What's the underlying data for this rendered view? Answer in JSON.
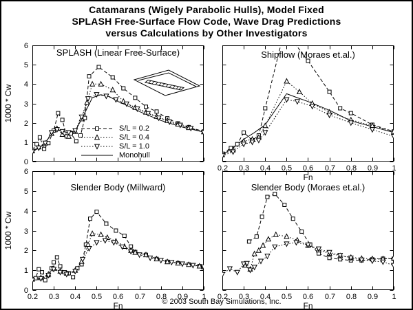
{
  "figure": {
    "title_lines": [
      "Catamarans (Wigely Parabolic Hulls), Model Fixed",
      "SPLASH Free-Surface Flow Code, Wave Drag Predictions",
      "versus Calculations by Other Investigators"
    ],
    "footer": "© 2003 South Bay Simulations, Inc."
  },
  "colors": {
    "ink": "#000000",
    "paper": "#ffffff"
  },
  "legend": {
    "items": [
      {
        "label": "S/L = 0.2",
        "line": "dashed",
        "marker": "square"
      },
      {
        "label": "S/L = 0.4",
        "line": "dotted",
        "marker": "triangle-up"
      },
      {
        "label": "S/L = 1.0",
        "line": "dotted",
        "marker": "triangle-down"
      },
      {
        "label": "Monohull",
        "line": "solid",
        "marker": "none"
      }
    ]
  },
  "chart_data": [
    {
      "id": "splash",
      "type": "line",
      "title": "SPLASH (Linear Free-Surface)",
      "xlabel": "",
      "ylabel": "1000 * Cw",
      "xlim": [
        0.2,
        1.0
      ],
      "ylim": [
        0,
        6
      ],
      "grid": false,
      "x_ticks": [
        0.2,
        0.3,
        0.4,
        0.5,
        0.6,
        0.7,
        0.8,
        0.9,
        1.0
      ],
      "x_tick_labels": [
        "0.2",
        "0.3",
        "0.4",
        "0.5",
        "0.6",
        "0.7",
        "0.8",
        "0.9",
        "1"
      ],
      "show_x_tick_labels": false,
      "y_ticks": [
        0,
        1,
        2,
        3,
        4,
        5,
        6
      ],
      "y_tick_labels": [
        "0",
        "1",
        "2",
        "3",
        "4",
        "5",
        "6"
      ],
      "show_y_tick_labels": true,
      "series": [
        {
          "name": "S/L = 0.2",
          "line": "dashed",
          "marker": "square",
          "x": [
            0.2,
            0.22,
            0.235,
            0.255,
            0.275,
            0.3,
            0.32,
            0.34,
            0.36,
            0.38,
            0.405,
            0.425,
            0.445,
            0.465,
            0.51,
            0.575,
            0.625,
            0.68,
            0.73,
            0.78,
            0.83,
            0.88,
            0.93,
            1.0
          ],
          "y": [
            0.6,
            0.9,
            1.25,
            0.65,
            0.95,
            1.6,
            2.5,
            2.15,
            1.3,
            1.45,
            1.05,
            1.35,
            2.25,
            4.4,
            4.88,
            4.35,
            3.78,
            3.29,
            2.83,
            2.58,
            2.23,
            1.97,
            1.78,
            1.55
          ]
        },
        {
          "name": "S/L = 0.4",
          "line": "dotted",
          "marker": "triangle-up",
          "x": [
            0.2,
            0.23,
            0.26,
            0.29,
            0.315,
            0.34,
            0.37,
            0.4,
            0.43,
            0.455,
            0.48,
            0.52,
            0.575,
            0.625,
            0.68,
            0.73,
            0.78,
            0.83,
            0.88,
            0.93,
            1.0
          ],
          "y": [
            0.55,
            0.75,
            0.95,
            1.45,
            1.7,
            1.4,
            1.3,
            1.55,
            2.2,
            3.05,
            4.0,
            4.0,
            3.7,
            3.11,
            2.79,
            2.55,
            2.33,
            2.12,
            1.93,
            1.75,
            1.53
          ]
        },
        {
          "name": "S/L = 1.0",
          "line": "dotted",
          "marker": "triangle-down",
          "x": [
            0.2,
            0.23,
            0.26,
            0.29,
            0.315,
            0.34,
            0.37,
            0.4,
            0.43,
            0.46,
            0.5,
            0.545,
            0.59,
            0.64,
            0.69,
            0.74,
            0.79,
            0.84,
            0.89,
            0.94,
            1.0
          ],
          "y": [
            0.5,
            0.7,
            0.95,
            1.5,
            1.65,
            1.55,
            1.5,
            1.6,
            2.3,
            3.25,
            3.46,
            3.38,
            3.2,
            2.98,
            2.72,
            2.48,
            2.25,
            2.05,
            1.88,
            1.72,
            1.5
          ]
        },
        {
          "name": "Monohull",
          "line": "solid",
          "marker": "none",
          "x": [
            0.2,
            0.25,
            0.3,
            0.33,
            0.36,
            0.4,
            0.44,
            0.48,
            0.52,
            0.56,
            0.6,
            0.65,
            0.7,
            0.75,
            0.8,
            0.85,
            0.9,
            0.95,
            1.0
          ],
          "y": [
            0.5,
            0.85,
            1.55,
            1.62,
            1.5,
            1.58,
            2.4,
            3.3,
            3.45,
            3.35,
            3.1,
            2.85,
            2.58,
            2.35,
            2.12,
            1.95,
            1.78,
            1.65,
            1.52
          ]
        }
      ]
    },
    {
      "id": "shipflow",
      "type": "line",
      "title": "Shipflow (Moraes et.al.)",
      "xlabel": "Fn",
      "ylabel": "",
      "xlim": [
        0.2,
        1.0
      ],
      "ylim": [
        0,
        6
      ],
      "grid": false,
      "x_ticks": [
        0.2,
        0.3,
        0.4,
        0.5,
        0.6,
        0.7,
        0.8,
        0.9,
        1.0
      ],
      "x_tick_labels": [
        "0.2",
        "0.3",
        "0.4",
        "0.5",
        "0.6",
        "0.7",
        "0.8",
        "0.9",
        "1"
      ],
      "show_x_tick_labels": true,
      "y_ticks": [
        0,
        1,
        2,
        3,
        4,
        5,
        6
      ],
      "y_tick_labels": [
        "0",
        "1",
        "2",
        "3",
        "4",
        "5",
        "6"
      ],
      "show_y_tick_labels": false,
      "series": [
        {
          "name": "S/L = 0.2",
          "line": "dashed",
          "marker": "square",
          "x": [
            0.2,
            0.24,
            0.27,
            0.3,
            0.34,
            0.37,
            0.4,
            0.49,
            0.6,
            0.7,
            0.75,
            0.8,
            0.9,
            1.0
          ],
          "y": [
            0.4,
            0.7,
            0.9,
            1.5,
            1.1,
            1.35,
            2.75,
            6.8,
            5.2,
            3.6,
            2.75,
            2.5,
            1.9,
            1.55
          ]
        },
        {
          "name": "S/L = 0.4",
          "line": "dotted",
          "marker": "triangle-up",
          "x": [
            0.2,
            0.25,
            0.3,
            0.34,
            0.37,
            0.4,
            0.5,
            0.56,
            0.62,
            0.7,
            0.8,
            0.9,
            1.0
          ],
          "y": [
            0.35,
            0.6,
            1.05,
            1.15,
            1.25,
            1.85,
            4.15,
            3.6,
            3.0,
            2.55,
            2.15,
            1.85,
            1.55
          ]
        },
        {
          "name": "S/L = 1.0",
          "line": "dotted",
          "marker": "triangle-down",
          "x": [
            0.2,
            0.25,
            0.3,
            0.34,
            0.37,
            0.4,
            0.5,
            0.55,
            0.62,
            0.7,
            0.8,
            0.9,
            1.0
          ],
          "y": [
            0.3,
            0.5,
            0.9,
            1.0,
            1.1,
            1.5,
            3.2,
            3.1,
            2.85,
            2.4,
            2.0,
            1.65,
            1.3
          ]
        },
        {
          "name": "Monohull",
          "line": "solid",
          "marker": "none",
          "x": [
            0.2,
            0.25,
            0.3,
            0.35,
            0.4,
            0.45,
            0.5,
            0.55,
            0.6,
            0.7,
            0.8,
            0.9,
            1.0
          ],
          "y": [
            0.35,
            0.7,
            1.15,
            1.5,
            1.9,
            2.7,
            3.5,
            3.3,
            3.1,
            2.65,
            2.1,
            1.8,
            1.5
          ]
        }
      ]
    },
    {
      "id": "slender-body-millward",
      "type": "line",
      "title": "Slender Body (Millward)",
      "xlabel": "Fn",
      "ylabel": "1000 * Cw",
      "xlim": [
        0.2,
        1.0
      ],
      "ylim": [
        0,
        6
      ],
      "grid": false,
      "x_ticks": [
        0.2,
        0.3,
        0.4,
        0.5,
        0.6,
        0.7,
        0.8,
        0.9,
        1.0
      ],
      "x_tick_labels": [
        "0.2",
        "0.3",
        "0.4",
        "0.5",
        "0.6",
        "0.7",
        "0.8",
        "0.9",
        "1"
      ],
      "show_x_tick_labels": true,
      "y_ticks": [
        0,
        1,
        2,
        3,
        4,
        5,
        6
      ],
      "y_tick_labels": [
        "0",
        "1",
        "2",
        "3",
        "4",
        "5",
        "6"
      ],
      "show_y_tick_labels": true,
      "series": [
        {
          "name": "S/L = 0.2",
          "line": "dashed",
          "marker": "square",
          "x": [
            0.2,
            0.215,
            0.23,
            0.245,
            0.26,
            0.275,
            0.29,
            0.3,
            0.315,
            0.33,
            0.35,
            0.37,
            0.39,
            0.41,
            0.43,
            0.45,
            0.47,
            0.5,
            0.545,
            0.59,
            0.63,
            0.66,
            0.68,
            0.73,
            0.78,
            0.83,
            0.88,
            0.93,
            0.98,
            1.0
          ],
          "y": [
            0.55,
            0.6,
            1.05,
            0.9,
            0.5,
            0.75,
            1.1,
            1.4,
            1.65,
            1.2,
            0.9,
            0.85,
            0.65,
            1.1,
            1.3,
            2.3,
            3.6,
            3.95,
            3.35,
            3.0,
            2.74,
            2.2,
            1.92,
            1.78,
            1.57,
            1.43,
            1.36,
            1.29,
            1.21,
            1.15
          ]
        },
        {
          "name": "S/L = 0.4",
          "line": "dotted",
          "marker": "triangle-up",
          "x": [
            0.2,
            0.24,
            0.275,
            0.3,
            0.33,
            0.36,
            0.4,
            0.43,
            0.46,
            0.48,
            0.52,
            0.55,
            0.59,
            0.63,
            0.66,
            0.68,
            0.73,
            0.78,
            0.83,
            0.88,
            0.93,
            0.98,
            1.0
          ],
          "y": [
            0.55,
            0.62,
            0.8,
            1.1,
            0.95,
            0.85,
            1.0,
            1.45,
            2.3,
            2.85,
            2.8,
            2.65,
            2.47,
            2.2,
            2.0,
            1.9,
            1.78,
            1.57,
            1.43,
            1.36,
            1.29,
            1.21,
            1.18
          ]
        },
        {
          "name": "S/L = 1.0",
          "line": "dotted",
          "marker": "triangle-down",
          "x": [
            0.2,
            0.24,
            0.275,
            0.3,
            0.33,
            0.36,
            0.4,
            0.435,
            0.465,
            0.5,
            0.54,
            0.58,
            0.62,
            0.66,
            0.7,
            0.75,
            0.8,
            0.85,
            0.9,
            0.95,
            1.0
          ],
          "y": [
            0.5,
            0.58,
            0.75,
            1.05,
            0.9,
            0.8,
            0.95,
            1.55,
            2.1,
            2.4,
            2.5,
            2.4,
            2.18,
            1.95,
            1.78,
            1.62,
            1.5,
            1.4,
            1.32,
            1.25,
            1.17
          ]
        }
      ]
    },
    {
      "id": "slender-body-moraes",
      "type": "line",
      "title": "Slender Body (Moraes et.al.)",
      "xlabel": "Fn",
      "ylabel": "",
      "xlim": [
        0.2,
        1.0
      ],
      "ylim": [
        0,
        6
      ],
      "grid": false,
      "x_ticks": [
        0.2,
        0.3,
        0.4,
        0.5,
        0.6,
        0.7,
        0.8,
        0.9,
        1.0
      ],
      "x_tick_labels": [
        "0.2",
        "0.3",
        "0.4",
        "0.5",
        "0.6",
        "0.7",
        "0.8",
        "0.9",
        "1"
      ],
      "show_x_tick_labels": true,
      "y_ticks": [
        0,
        1,
        2,
        3,
        4,
        5,
        6
      ],
      "y_tick_labels": [
        "0",
        "1",
        "2",
        "3",
        "4",
        "5",
        "6"
      ],
      "show_y_tick_labels": false,
      "series": [
        {
          "name": "S/L = 0.2",
          "line": "dashed",
          "marker": "square",
          "x": [
            0.325,
            0.36,
            0.385,
            0.41,
            0.445,
            0.49,
            0.53,
            0.57,
            0.61,
            0.65,
            0.7,
            0.75,
            0.8,
            0.85,
            0.9,
            0.95,
            1.0
          ],
          "y": [
            2.45,
            2.7,
            3.7,
            4.7,
            4.85,
            4.3,
            3.6,
            2.95,
            2.3,
            1.85,
            1.62,
            1.55,
            1.5,
            1.5,
            1.55,
            1.58,
            1.58
          ]
        },
        {
          "name": "S/L = 0.4",
          "line": "dotted",
          "marker": "triangle-up",
          "x": [
            0.305,
            0.33,
            0.35,
            0.37,
            0.39,
            0.415,
            0.45,
            0.5,
            0.55,
            0.6,
            0.65,
            0.7,
            0.75,
            0.8,
            0.85,
            0.9,
            0.95,
            1.0
          ],
          "y": [
            1.25,
            1.05,
            1.83,
            2.0,
            2.25,
            2.57,
            2.8,
            2.7,
            2.52,
            2.25,
            2.02,
            1.85,
            1.73,
            1.65,
            1.6,
            1.58,
            1.58,
            1.62
          ]
        },
        {
          "name": "S/L = 1.0",
          "line": "dotted",
          "marker": "triangle-down",
          "x": [
            0.2,
            0.235,
            0.27,
            0.3,
            0.315,
            0.33,
            0.35,
            0.38,
            0.41,
            0.445,
            0.5,
            0.545,
            0.6,
            0.65,
            0.7,
            0.75,
            0.8,
            0.85,
            0.9,
            0.95,
            1.0
          ],
          "y": [
            0.79,
            1.08,
            0.9,
            1.32,
            1.35,
            1.01,
            1.15,
            1.46,
            1.71,
            2.18,
            2.33,
            2.4,
            2.28,
            2.08,
            1.9,
            1.75,
            1.62,
            1.52,
            1.47,
            1.42,
            1.25
          ]
        }
      ]
    }
  ]
}
